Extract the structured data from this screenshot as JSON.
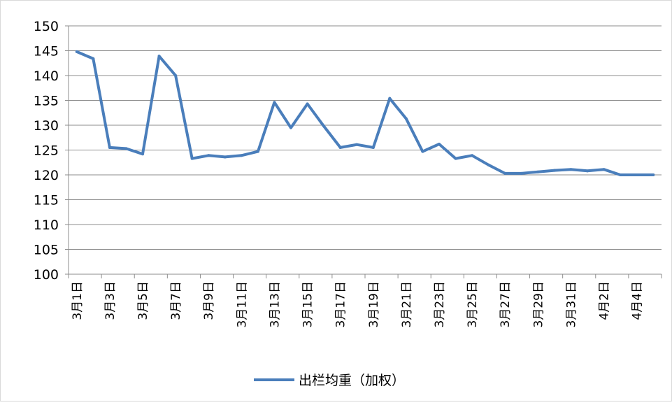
{
  "chart_data": {
    "type": "line",
    "title": "",
    "xlabel": "",
    "ylabel": "",
    "ylim": [
      100,
      150
    ],
    "yticks": [
      100,
      105,
      110,
      115,
      120,
      125,
      130,
      135,
      140,
      145,
      150
    ],
    "grid": true,
    "legend_position": "bottom",
    "categories": [
      "3月1日",
      "3月2日",
      "3月3日",
      "3月4日",
      "3月5日",
      "3月6日",
      "3月7日",
      "3月8日",
      "3月9日",
      "3月10日",
      "3月11日",
      "3月12日",
      "3月13日",
      "3月14日",
      "3月15日",
      "3月16日",
      "3月17日",
      "3月18日",
      "3月19日",
      "3月20日",
      "3月21日",
      "3月22日",
      "3月23日",
      "3月24日",
      "3月25日",
      "3月26日",
      "3月27日",
      "3月28日",
      "3月29日",
      "3月30日",
      "3月31日",
      "4月1日",
      "4月2日",
      "4月3日",
      "4月4日",
      "4月5日"
    ],
    "tick_labels": [
      "3月1日",
      "3月3日",
      "3月5日",
      "3月7日",
      "3月9日",
      "3月11日",
      "3月13日",
      "3月15日",
      "3月17日",
      "3月19日",
      "3月21日",
      "3月23日",
      "3月25日",
      "3月27日",
      "3月29日",
      "3月31日",
      "4月2日",
      "4月4日"
    ],
    "series": [
      {
        "name": "出栏均重（加权）",
        "color": "#4a7ebb",
        "values": [
          144.8,
          143.4,
          125.5,
          125.3,
          124.2,
          143.9,
          140.0,
          123.3,
          123.9,
          123.6,
          123.9,
          124.7,
          134.6,
          129.5,
          134.3,
          129.8,
          125.5,
          126.1,
          125.5,
          135.4,
          131.3,
          124.7,
          126.2,
          123.3,
          123.9,
          122.0,
          120.3,
          120.3,
          120.6,
          120.9,
          121.1,
          120.8,
          121.1,
          120.0,
          120.0,
          120.0
        ]
      }
    ]
  }
}
